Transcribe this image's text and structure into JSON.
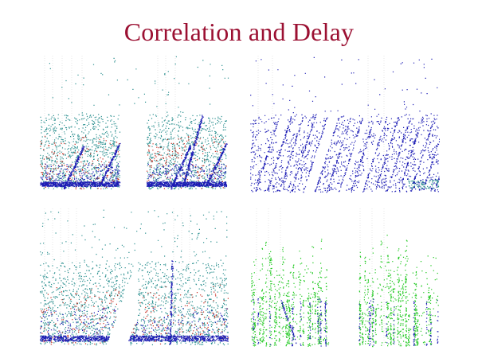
{
  "title": "Correlation and Delay",
  "colors": {
    "title": "#9b1032",
    "blue": "#1a1ab4",
    "teal": "#2a8f8f",
    "green": "#1ec81e",
    "red": "#c42a1e",
    "guide": "#d8d8d8"
  },
  "chart_data": [
    {
      "type": "scatter",
      "position": "top-left",
      "dominant_colors": [
        "teal",
        "blue",
        "red"
      ],
      "groups": 2,
      "bands": [
        "dense noise",
        "blue baseline band",
        "diagonal streaks"
      ]
    },
    {
      "type": "scatter",
      "position": "top-right",
      "dominant_colors": [
        "blue"
      ],
      "groups": 1,
      "bands": [
        "diagonal streaks",
        "blank diagonal gaps"
      ]
    },
    {
      "type": "scatter",
      "position": "bottom-left",
      "dominant_colors": [
        "teal",
        "blue",
        "red"
      ],
      "groups": 1,
      "bands": [
        "dense noise",
        "blue baseline band",
        "wide blank diagonal"
      ]
    },
    {
      "type": "scatter",
      "position": "bottom-right",
      "dominant_colors": [
        "green",
        "blue"
      ],
      "groups": 2,
      "bands": [
        "vertical spikes"
      ]
    }
  ]
}
